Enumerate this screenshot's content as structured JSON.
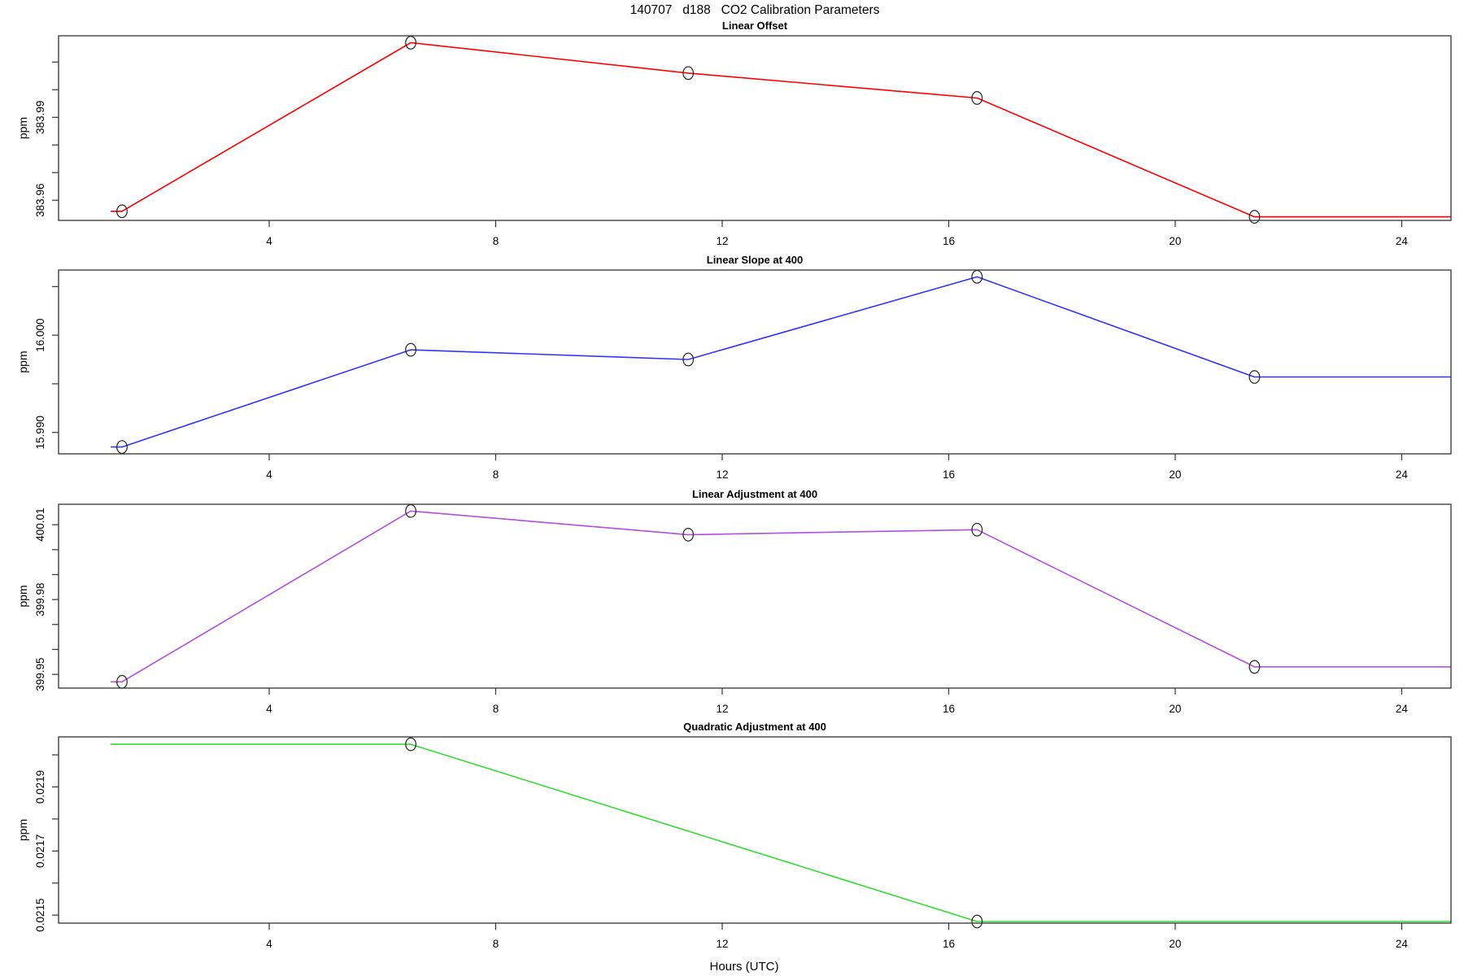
{
  "page_title": "140707   d188   CO2 Calibration Parameters",
  "x_axis": {
    "label": "Hours (UTC)",
    "tick_values": [
      4,
      8,
      12,
      16,
      20,
      24
    ],
    "tick_labels": [
      "4",
      "8",
      "12",
      "16",
      "20",
      "24"
    ],
    "range": [
      0.28,
      24.87
    ]
  },
  "chart_data": [
    {
      "type": "line",
      "title": "Linear Offset",
      "ylabel": "ppm",
      "color": "#ff0000",
      "ylim": [
        383.9527,
        384.0195
      ],
      "yticks": [
        {
          "v": 383.96,
          "label": "383.96"
        },
        {
          "v": 383.97,
          "label": ""
        },
        {
          "v": 383.98,
          "label": ""
        },
        {
          "v": 383.99,
          "label": "383.99"
        },
        {
          "v": 384.0,
          "label": ""
        },
        {
          "v": 384.01,
          "label": ""
        }
      ],
      "x": [
        1.2,
        1.4,
        6.5,
        11.4,
        16.5,
        21.4,
        24.87
      ],
      "y": [
        383.956,
        383.956,
        384.017,
        384.006,
        383.997,
        383.954,
        383.954
      ],
      "marker": [
        false,
        true,
        true,
        true,
        true,
        true,
        false
      ]
    },
    {
      "type": "line",
      "title": "Linear Slope at 400",
      "ylabel": "ppm",
      "color": "#3333ff",
      "ylim": [
        15.9878,
        16.0067
      ],
      "yticks": [
        {
          "v": 15.99,
          "label": "15.990"
        },
        {
          "v": 15.995,
          "label": ""
        },
        {
          "v": 16.0,
          "label": "16.000"
        },
        {
          "v": 16.005,
          "label": ""
        }
      ],
      "x": [
        1.2,
        1.4,
        6.5,
        11.4,
        16.5,
        21.4,
        24.87
      ],
      "y": [
        15.9885,
        15.9885,
        15.9985,
        15.9975,
        16.006,
        15.9957,
        15.9957
      ],
      "marker": [
        false,
        true,
        true,
        true,
        true,
        true,
        false
      ]
    },
    {
      "type": "line",
      "title": "Linear Adjustment at 400",
      "ylabel": "ppm",
      "color": "#b050e0",
      "ylim": [
        399.9445,
        400.0182
      ],
      "yticks": [
        {
          "v": 399.95,
          "label": "399.95"
        },
        {
          "v": 399.96,
          "label": ""
        },
        {
          "v": 399.97,
          "label": ""
        },
        {
          "v": 399.98,
          "label": "399.98"
        },
        {
          "v": 399.99,
          "label": ""
        },
        {
          "v": 400.0,
          "label": ""
        },
        {
          "v": 400.01,
          "label": "400.01"
        }
      ],
      "x": [
        1.2,
        1.4,
        6.5,
        11.4,
        16.5,
        21.4,
        24.87
      ],
      "y": [
        399.947,
        399.947,
        400.0155,
        400.006,
        400.008,
        399.953,
        399.953
      ],
      "marker": [
        false,
        true,
        true,
        true,
        true,
        true,
        false
      ]
    },
    {
      "type": "line",
      "title": "Quadratic Adjustment at 400",
      "ylabel": "ppm",
      "color": "#33dd33",
      "ylim": [
        0.021475,
        0.022056
      ],
      "yticks": [
        {
          "v": 0.0215,
          "label": "0.0215"
        },
        {
          "v": 0.0216,
          "label": ""
        },
        {
          "v": 0.0217,
          "label": "0.0217"
        },
        {
          "v": 0.0218,
          "label": ""
        },
        {
          "v": 0.0219,
          "label": "0.0219"
        },
        {
          "v": 0.022,
          "label": ""
        }
      ],
      "x": [
        1.2,
        6.5,
        16.5,
        24.87
      ],
      "y": [
        0.022033,
        0.022033,
        0.02148,
        0.02148
      ],
      "marker": [
        false,
        true,
        true,
        false
      ]
    }
  ]
}
